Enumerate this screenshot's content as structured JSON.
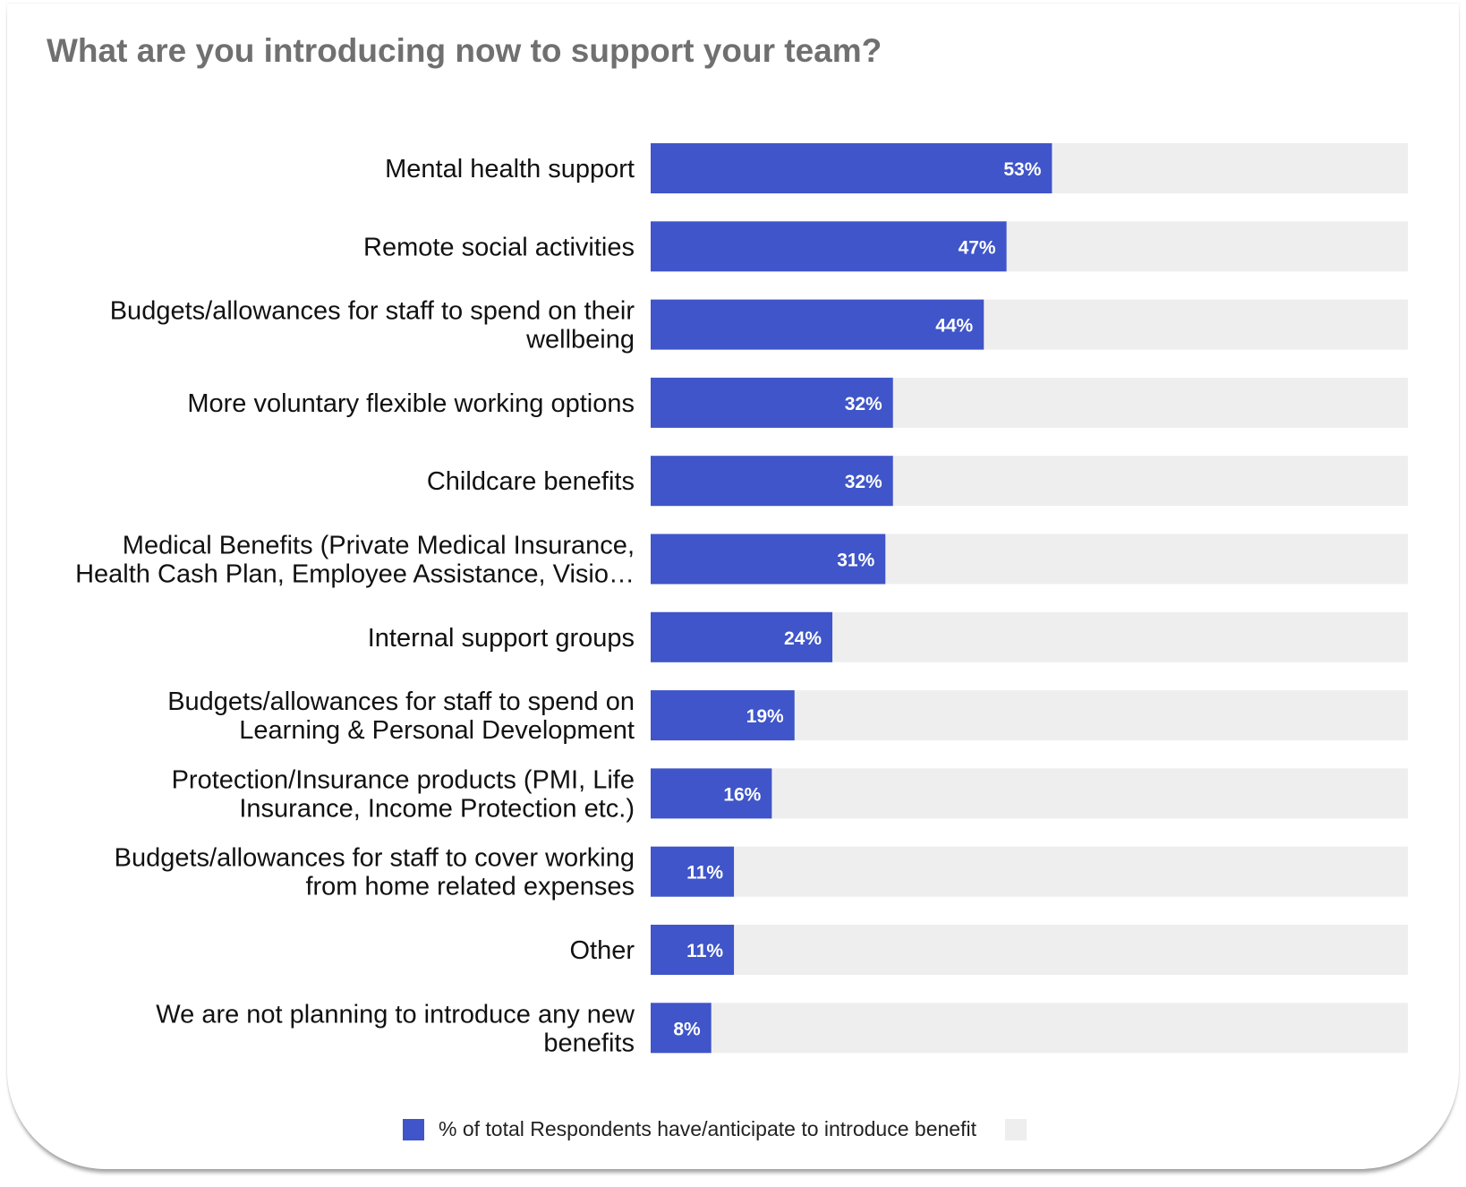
{
  "colors": {
    "bar": "#3f55c9",
    "track": "#eeeeee",
    "title": "#707070",
    "label": "#111111",
    "value_label": "#ffffff"
  },
  "chart_data": {
    "type": "bar",
    "orientation": "horizontal",
    "title": "What are you introducing now to support your team?",
    "xlim": [
      0,
      100
    ],
    "grid": false,
    "legend_position": "bottom",
    "categories": [
      [
        "Mental health support"
      ],
      [
        "Remote social activities"
      ],
      [
        "Budgets/allowances for staff to spend on their",
        "wellbeing"
      ],
      [
        "More voluntary flexible working options"
      ],
      [
        "Childcare benefits"
      ],
      [
        "Medical Benefits (Private Medical Insurance,",
        "Health Cash Plan, Employee Assistance, Visio…"
      ],
      [
        "Internal support groups"
      ],
      [
        "Budgets/allowances for staff to spend on",
        "Learning & Personal Development"
      ],
      [
        "Protection/Insurance products (PMI, Life",
        "Insurance, Income Protection etc.)"
      ],
      [
        "Budgets/allowances for staff to cover working",
        "from home related expenses"
      ],
      [
        "Other"
      ],
      [
        "We are not planning to introduce any new",
        "benefits"
      ]
    ],
    "values": [
      53,
      47,
      44,
      32,
      32,
      31,
      24,
      19,
      16,
      11,
      11,
      8
    ],
    "value_labels": [
      "53%",
      "47%",
      "44%",
      "32%",
      "32%",
      "31%",
      "24%",
      "19%",
      "16%",
      "11%",
      "11%",
      "8%"
    ],
    "series": [
      {
        "name": "% of total Respondents have/anticipate to introduce benefit",
        "color": "#3f55c9"
      },
      {
        "name": "",
        "color": "#eeeeee"
      }
    ]
  }
}
